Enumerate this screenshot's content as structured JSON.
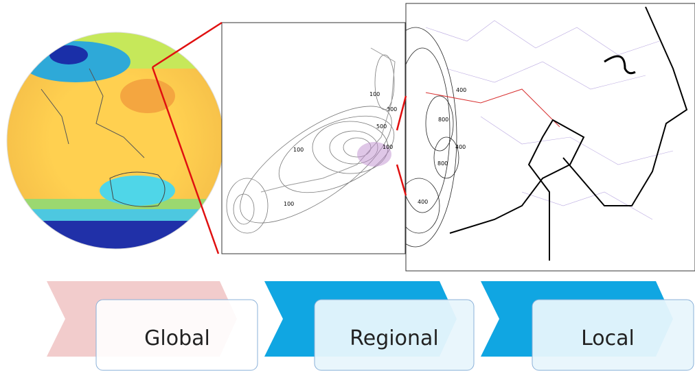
{
  "regional_map": {
    "contour_labels": [
      "100",
      "300",
      "500",
      "100",
      "100",
      "100"
    ]
  },
  "local_map": {
    "contour_labels": [
      "400",
      "800",
      "400",
      "800",
      "400"
    ]
  },
  "stages": [
    {
      "label": "Global"
    },
    {
      "label": "Regional"
    },
    {
      "label": "Local"
    }
  ]
}
